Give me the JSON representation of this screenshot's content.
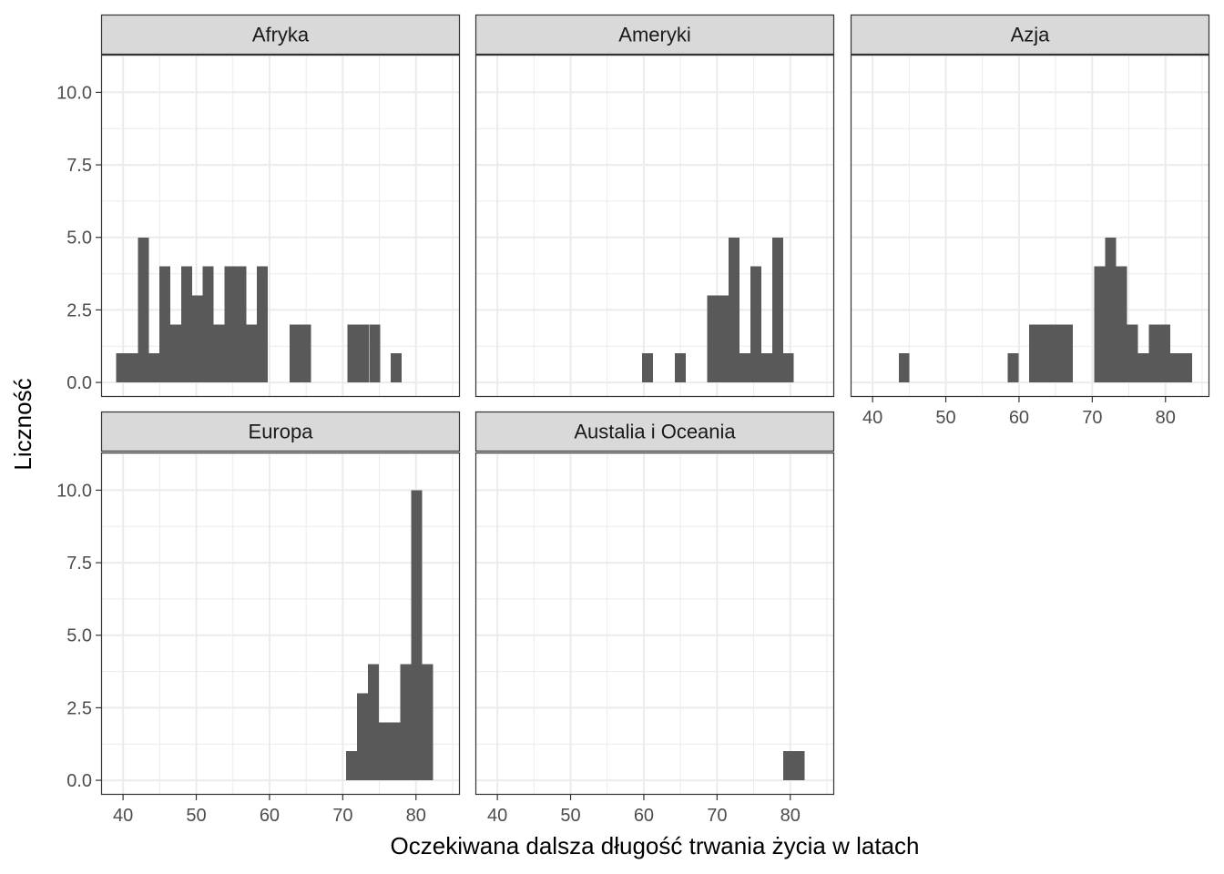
{
  "chart_data": {
    "type": "bar",
    "subtype": "faceted-histogram",
    "xlabel": "Oczekiwana dalsza długość trwania życia w latach",
    "ylabel": "Liczność",
    "xlim": [
      37,
      86
    ],
    "ylim": [
      -0.5,
      11.3
    ],
    "x_ticks": [
      40,
      50,
      60,
      70,
      80
    ],
    "x_tick_labels": [
      "40",
      "50",
      "60",
      "70",
      "80"
    ],
    "y_ticks": [
      0,
      2.5,
      5,
      7.5,
      10
    ],
    "y_tick_labels": [
      "0.0",
      "2.5",
      "5.0",
      "7.5",
      "10.0"
    ],
    "bin_width": 1.48,
    "facets": [
      {
        "name": "Afryka",
        "bins": [
          {
            "x": 39.8,
            "count": 1
          },
          {
            "x": 41.3,
            "count": 1
          },
          {
            "x": 42.8,
            "count": 5
          },
          {
            "x": 44.2,
            "count": 1
          },
          {
            "x": 45.7,
            "count": 4
          },
          {
            "x": 47.2,
            "count": 2
          },
          {
            "x": 48.7,
            "count": 4
          },
          {
            "x": 50.2,
            "count": 3
          },
          {
            "x": 51.6,
            "count": 4
          },
          {
            "x": 53.1,
            "count": 2
          },
          {
            "x": 54.6,
            "count": 4
          },
          {
            "x": 56.1,
            "count": 4
          },
          {
            "x": 57.6,
            "count": 2
          },
          {
            "x": 59.0,
            "count": 4
          },
          {
            "x": 63.5,
            "count": 2
          },
          {
            "x": 64.9,
            "count": 2
          },
          {
            "x": 71.4,
            "count": 2
          },
          {
            "x": 72.9,
            "count": 2
          },
          {
            "x": 74.4,
            "count": 2
          },
          {
            "x": 77.3,
            "count": 1
          }
        ]
      },
      {
        "name": "Ameryki",
        "bins": [
          {
            "x": 60.5,
            "count": 1
          },
          {
            "x": 65.0,
            "count": 1
          },
          {
            "x": 69.4,
            "count": 3
          },
          {
            "x": 70.9,
            "count": 3
          },
          {
            "x": 72.3,
            "count": 5
          },
          {
            "x": 73.8,
            "count": 1
          },
          {
            "x": 75.3,
            "count": 4
          },
          {
            "x": 76.8,
            "count": 1
          },
          {
            "x": 78.3,
            "count": 5
          },
          {
            "x": 79.7,
            "count": 1
          }
        ]
      },
      {
        "name": "Azja",
        "bins": [
          {
            "x": 44.3,
            "count": 1
          },
          {
            "x": 59.2,
            "count": 1
          },
          {
            "x": 62.1,
            "count": 2
          },
          {
            "x": 63.6,
            "count": 2
          },
          {
            "x": 65.1,
            "count": 2
          },
          {
            "x": 66.6,
            "count": 2
          },
          {
            "x": 71.0,
            "count": 4
          },
          {
            "x": 72.5,
            "count": 5
          },
          {
            "x": 74.0,
            "count": 4
          },
          {
            "x": 75.5,
            "count": 2
          },
          {
            "x": 77.0,
            "count": 1
          },
          {
            "x": 78.5,
            "count": 2
          },
          {
            "x": 79.9,
            "count": 2
          },
          {
            "x": 81.4,
            "count": 1
          },
          {
            "x": 82.9,
            "count": 1
          }
        ]
      },
      {
        "name": "Europa",
        "bins": [
          {
            "x": 71.2,
            "count": 1
          },
          {
            "x": 72.7,
            "count": 3
          },
          {
            "x": 74.2,
            "count": 4
          },
          {
            "x": 75.7,
            "count": 2
          },
          {
            "x": 77.1,
            "count": 2
          },
          {
            "x": 78.6,
            "count": 4
          },
          {
            "x": 80.1,
            "count": 10
          },
          {
            "x": 81.6,
            "count": 4
          }
        ]
      },
      {
        "name": "Austalia i Oceania",
        "bins": [
          {
            "x": 79.8,
            "count": 1
          },
          {
            "x": 81.2,
            "count": 1
          }
        ]
      }
    ]
  }
}
